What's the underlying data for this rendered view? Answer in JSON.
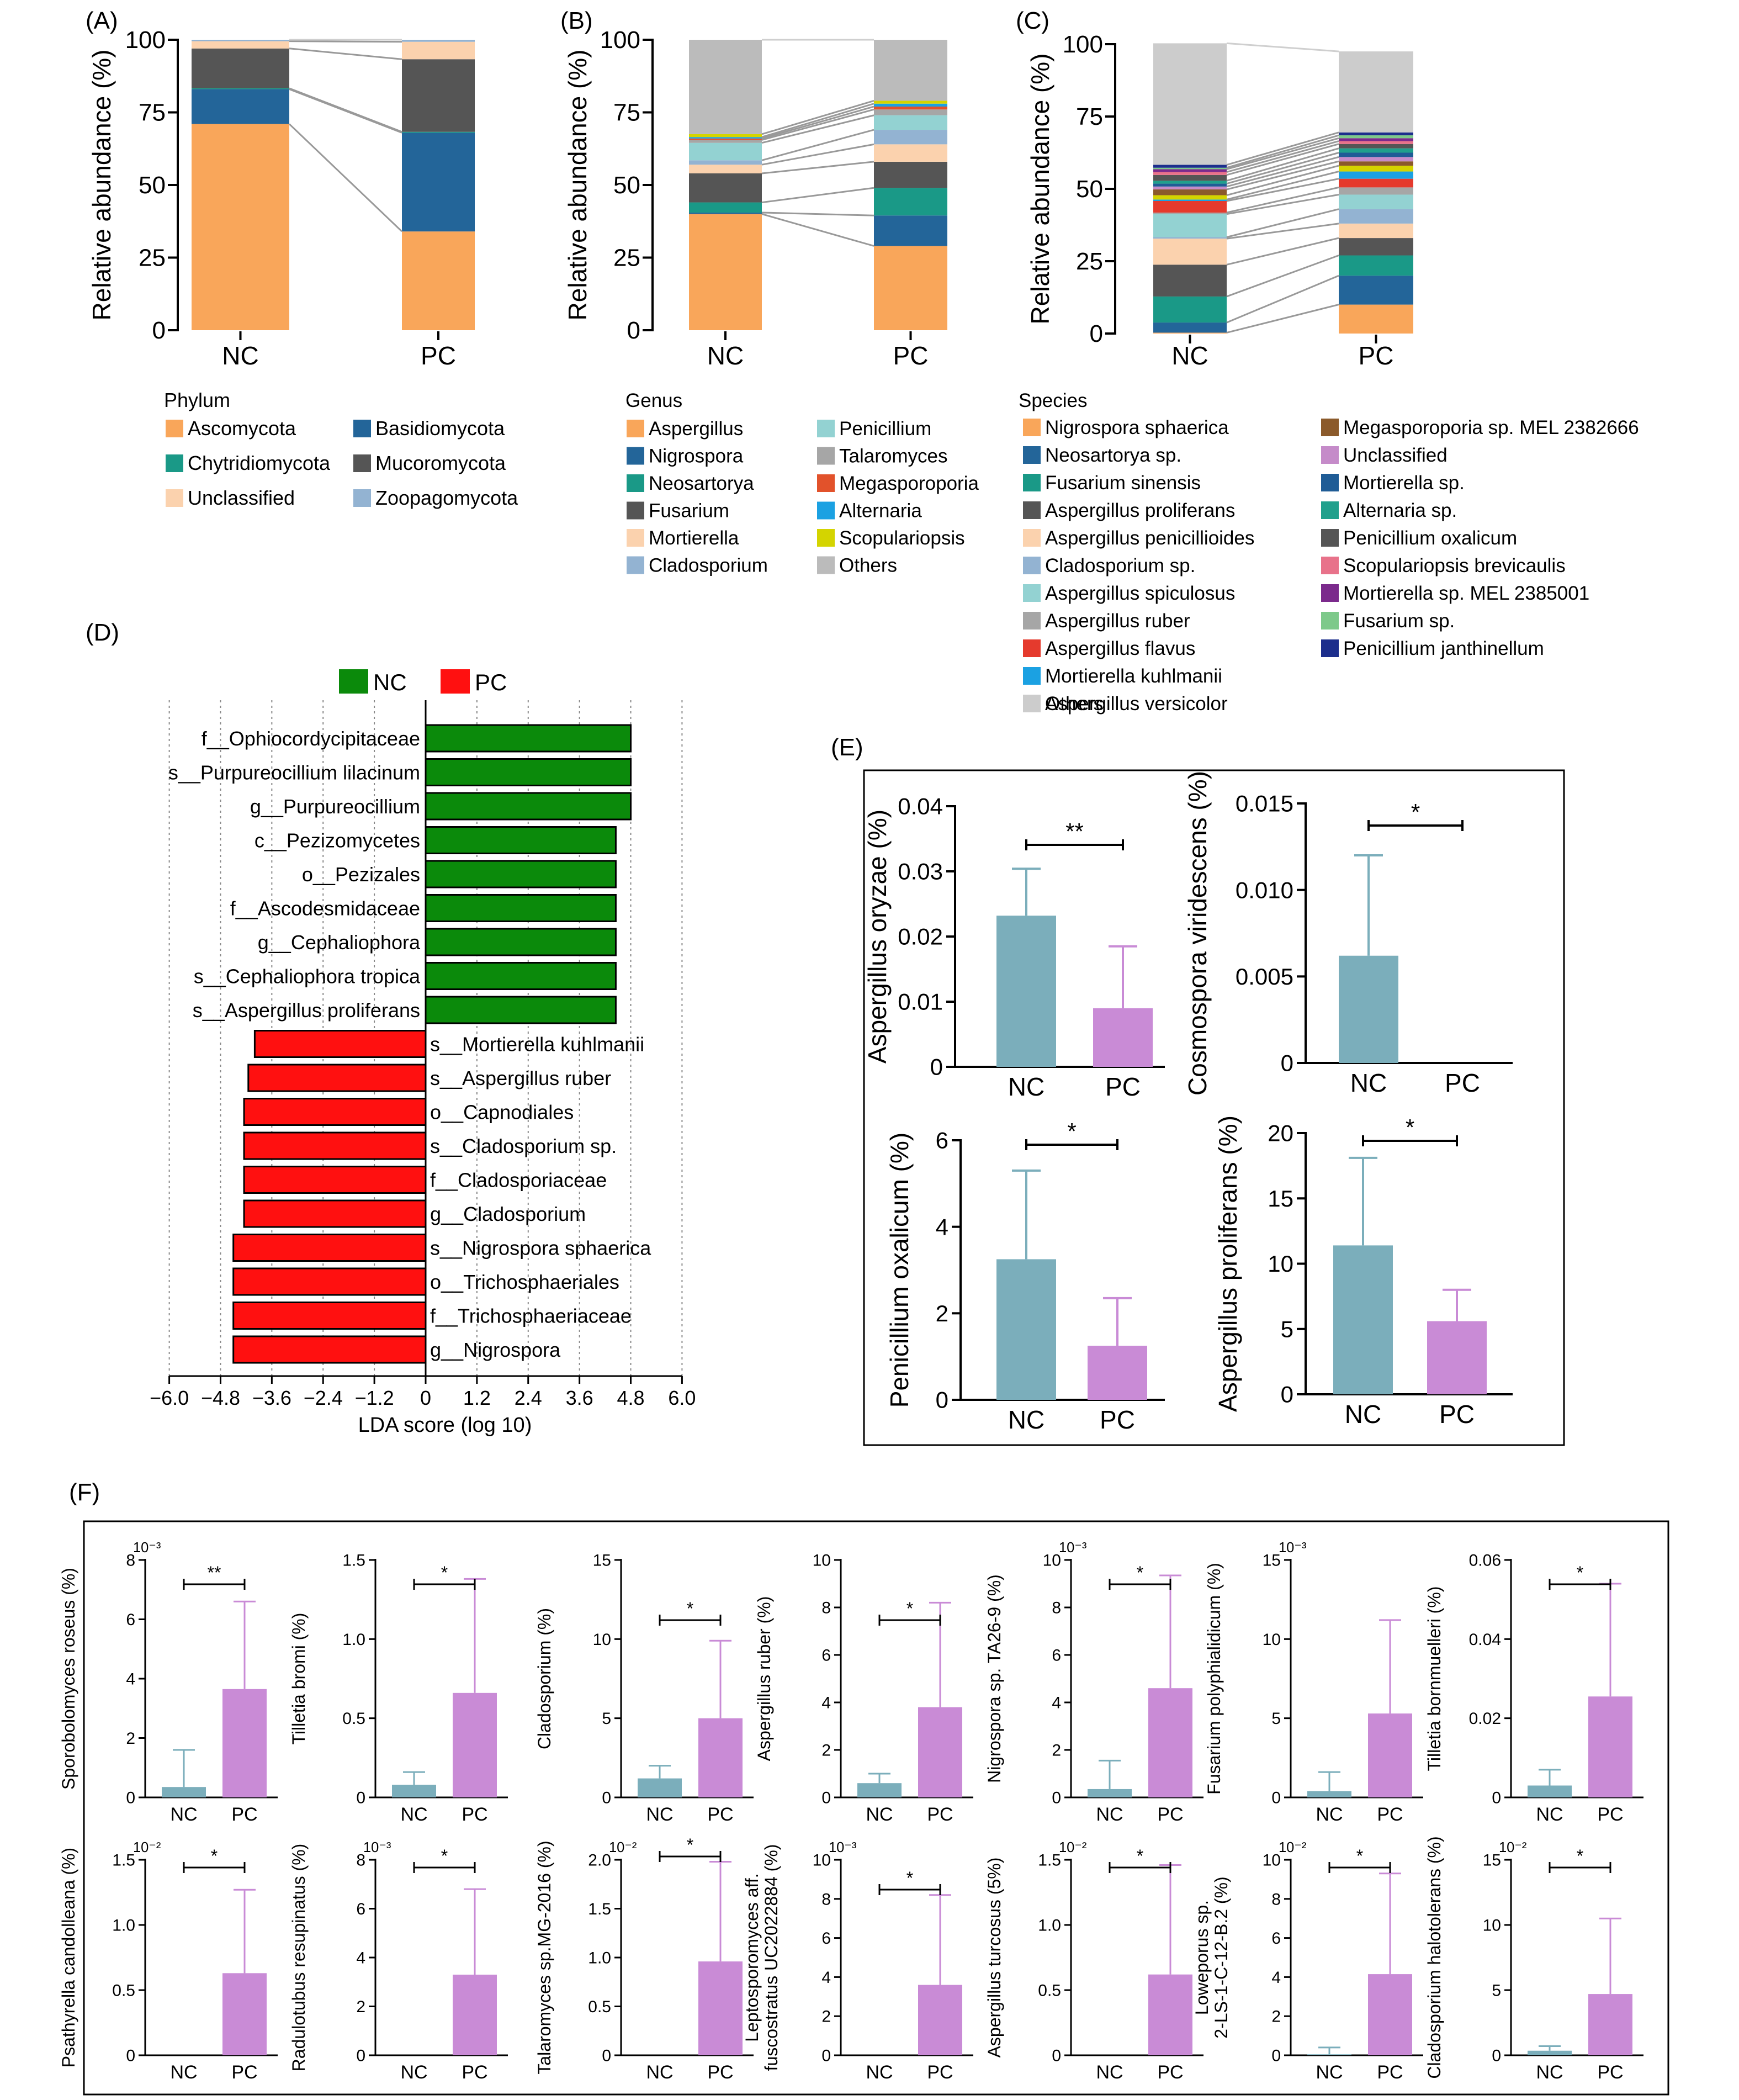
{
  "panels": {
    "A": "(A)",
    "B": "(B)",
    "C": "(C)",
    "D": "(D)",
    "E": "(E)",
    "F": "(F)"
  },
  "chart_data": [
    {
      "id": "A",
      "type": "bar",
      "stacked": true,
      "ylabel": "Relative abundance (%)",
      "ylim": [
        0,
        100
      ],
      "yticks": [
        0,
        25,
        50,
        75,
        100
      ],
      "categories": [
        "NC",
        "PC"
      ],
      "legend_title": "Phylum",
      "series": [
        {
          "name": "Ascomycota",
          "color": "#F9A65A",
          "values": [
            71,
            34
          ]
        },
        {
          "name": "Basidiomycota",
          "color": "#236599",
          "values": [
            12,
            34
          ]
        },
        {
          "name": "Chytridiomycota",
          "color": "#1A9987",
          "values": [
            0.3,
            0.3
          ]
        },
        {
          "name": "Mucoromycota",
          "color": "#555555",
          "values": [
            13.7,
            25
          ]
        },
        {
          "name": "Unclassified",
          "color": "#FBD2AE",
          "values": [
            2.5,
            6
          ]
        },
        {
          "name": "Zoopagomycota",
          "color": "#93B3D2",
          "values": [
            0.5,
            0.7
          ]
        }
      ]
    },
    {
      "id": "B",
      "type": "bar",
      "stacked": true,
      "ylabel": "Relative abundance (%)",
      "ylim": [
        0,
        100
      ],
      "yticks": [
        0,
        25,
        50,
        75,
        100
      ],
      "categories": [
        "NC",
        "PC"
      ],
      "legend_title": "Genus",
      "series": [
        {
          "name": "Aspergillus",
          "color": "#F9A65A",
          "values": [
            40,
            29
          ]
        },
        {
          "name": "Nigrospora",
          "color": "#236599",
          "values": [
            0.5,
            10.5
          ]
        },
        {
          "name": "Neosartorya",
          "color": "#1A9987",
          "values": [
            3.5,
            9.5
          ]
        },
        {
          "name": "Fusarium",
          "color": "#555555",
          "values": [
            10,
            9
          ]
        },
        {
          "name": "Mortierella",
          "color": "#FBD2AE",
          "values": [
            3,
            6
          ]
        },
        {
          "name": "Cladosporium",
          "color": "#93B3D2",
          "values": [
            1.5,
            5
          ]
        },
        {
          "name": "Penicillium",
          "color": "#93D2D2",
          "values": [
            6,
            5
          ]
        },
        {
          "name": "Talaromyces",
          "color": "#A6A6A6",
          "values": [
            1,
            2
          ]
        },
        {
          "name": "Megasporoporia",
          "color": "#E2522B",
          "values": [
            0.5,
            1
          ]
        },
        {
          "name": "Alternaria",
          "color": "#1BA1E2",
          "values": [
            0.5,
            1
          ]
        },
        {
          "name": "Scopulariopsis",
          "color": "#D4D400",
          "values": [
            1,
            1
          ]
        },
        {
          "name": "Others",
          "color": "#BBBBBB",
          "values": [
            32.5,
            21
          ]
        }
      ]
    },
    {
      "id": "C",
      "type": "bar",
      "stacked": true,
      "ylabel": "Relative abundance (%)",
      "ylim": [
        0,
        100
      ],
      "yticks": [
        0,
        25,
        50,
        75,
        100
      ],
      "categories": [
        "NC",
        "PC"
      ],
      "legend_title": "Species",
      "series": [
        {
          "name": "Nigrospora sphaerica",
          "color": "#F9A65A",
          "values": [
            0.3,
            10
          ]
        },
        {
          "name": "Neosartorya sp.",
          "color": "#236599",
          "values": [
            3.5,
            10
          ]
        },
        {
          "name": "Fusarium sinensis",
          "color": "#1A9987",
          "values": [
            9,
            7
          ]
        },
        {
          "name": "Aspergillus proliferans",
          "color": "#555555",
          "values": [
            11,
            6
          ]
        },
        {
          "name": "Aspergillus penicillioides",
          "color": "#FBD2AE",
          "values": [
            9,
            5
          ]
        },
        {
          "name": "Cladosporium sp.",
          "color": "#93B3D2",
          "values": [
            0.5,
            5
          ]
        },
        {
          "name": "Aspergillus spiculosus",
          "color": "#93D2D2",
          "values": [
            8,
            5
          ]
        },
        {
          "name": "Aspergillus ruber",
          "color": "#A6A6A6",
          "values": [
            0.5,
            2.5
          ]
        },
        {
          "name": "Aspergillus flavus",
          "color": "#E53A2D",
          "values": [
            4,
            3
          ]
        },
        {
          "name": "Mortierella kuhlmanii",
          "color": "#1BA1E2",
          "values": [
            0.5,
            2.5
          ]
        },
        {
          "name": "Aspergillus versicolor",
          "color": "#D4D400",
          "values": [
            1.5,
            2
          ]
        },
        {
          "name": "Megasporoporia sp. MEL 2382666",
          "color": "#8B5A2B",
          "values": [
            2,
            1.5
          ]
        },
        {
          "name": "Unclassified",
          "color": "#C58BC9",
          "values": [
            1,
            1.5
          ]
        },
        {
          "name": "Mortierella sp.",
          "color": "#1F5C96",
          "values": [
            1,
            1.5
          ]
        },
        {
          "name": "Alternaria sp.",
          "color": "#20A08C",
          "values": [
            1,
            1.5
          ]
        },
        {
          "name": "Penicillium oxalicum",
          "color": "#555555",
          "values": [
            2,
            1.5
          ]
        },
        {
          "name": "Scopulariopsis brevicaulis",
          "color": "#E8728A",
          "values": [
            1,
            1
          ]
        },
        {
          "name": "Mortierella sp. MEL 2385001",
          "color": "#7B2A8C",
          "values": [
            1,
            1
          ]
        },
        {
          "name": "Fusarium sp.",
          "color": "#7DC98A",
          "values": [
            0.5,
            1
          ]
        },
        {
          "name": "Penicillium janthinellum",
          "color": "#1C2E8C",
          "values": [
            1,
            1
          ]
        },
        {
          "name": "Others",
          "color": "#CCCCCC",
          "values": [
            42,
            28
          ]
        }
      ]
    },
    {
      "id": "D",
      "type": "bar",
      "orientation": "horizontal",
      "xlabel": "LDA score (log 10)",
      "xlim": [
        -6,
        6
      ],
      "xticks": [
        "−6.0",
        "−4.8",
        "−3.6",
        "−2.4",
        "−1.2",
        "0",
        "1.2",
        "2.4",
        "3.6",
        "4.8",
        "6.0"
      ],
      "xtick_values": [
        -6,
        -4.8,
        -3.6,
        -2.4,
        -1.2,
        0,
        1.2,
        2.4,
        3.6,
        4.8,
        6
      ],
      "legend": [
        {
          "name": "NC",
          "color": "#0B8A0B"
        },
        {
          "name": "PC",
          "color": "#FF1010"
        }
      ],
      "categories": [
        "f__Ophiocordycipitaceae",
        "s__Purpureocillium lilacinum",
        "g__Purpureocillium",
        "c__Pezizomycetes",
        "o__Pezizales",
        "f__Ascodesmidaceae",
        "g__Cephaliophora",
        "s__Cephaliophora tropica",
        "s__Aspergillus proliferans",
        "s__Mortierella kuhlmanii",
        "s__Aspergillus ruber",
        "o__Capnodiales",
        "s__Cladosporium sp.",
        "f__Cladosporiaceae",
        "g__Cladosporium",
        "s__Nigrospora sphaerica",
        "o__Trichosphaeriales",
        "f__Trichosphaeriaceae",
        "g__Nigrospora"
      ],
      "values": [
        4.8,
        4.8,
        4.8,
        4.45,
        4.45,
        4.45,
        4.45,
        4.45,
        4.45,
        -4.0,
        -4.15,
        -4.25,
        -4.25,
        -4.25,
        -4.25,
        -4.5,
        -4.5,
        -4.5,
        -4.5
      ]
    },
    {
      "id": "E",
      "type": "bar",
      "subplots": [
        {
          "ylabel": "Aspergillus oryzae (%)",
          "yticks": [
            "0",
            "0.01",
            "0.02",
            "0.03",
            "0.04"
          ],
          "ymax": 0.04,
          "values": [
            0.0232,
            0.009
          ],
          "errors": [
            0.0072,
            0.0095
          ],
          "sig": "**"
        },
        {
          "ylabel": "Cosmospora viridescens (%)",
          "yticks": [
            "0",
            "0.005",
            "0.010",
            "0.015"
          ],
          "ymax": 0.015,
          "values": [
            0.0062,
            0
          ],
          "errors": [
            0.0058,
            0
          ],
          "sig": "*"
        },
        {
          "ylabel": "Penicillium oxalicum (%)",
          "yticks": [
            "0",
            "2",
            "4",
            "6"
          ],
          "ymax": 6,
          "values": [
            3.25,
            1.25
          ],
          "errors": [
            2.05,
            1.1
          ],
          "sig": "*"
        },
        {
          "ylabel": "Aspergillus proliferans (%)",
          "yticks": [
            "0",
            "5",
            "10",
            "15",
            "20"
          ],
          "ymax": 20,
          "values": [
            11.4,
            5.6
          ],
          "errors": [
            6.7,
            2.4
          ],
          "sig": "*"
        }
      ],
      "categories": [
        "NC",
        "PC"
      ],
      "colors": [
        "#7BAEBB",
        "#C98BD6"
      ]
    },
    {
      "id": "F",
      "type": "bar",
      "categories": [
        "NC",
        "PC"
      ],
      "colors": [
        "#7BAEBB",
        "#C98BD6"
      ],
      "subplots": [
        {
          "ylabel": "Sporobolomyces roseus (%)",
          "exp": "10⁻³",
          "yticks": [
            "0",
            "2",
            "4",
            "6",
            "8"
          ],
          "ymax": 8,
          "values": [
            0.35,
            3.65
          ],
          "errors": [
            1.25,
            2.95
          ],
          "sig": "**"
        },
        {
          "ylabel": "Tilletia bromi (%)",
          "exp": "",
          "yticks": [
            "0",
            "0.5",
            "1.0",
            "1.5"
          ],
          "ymax": 1.5,
          "values": [
            0.08,
            0.66
          ],
          "errors": [
            0.08,
            0.72
          ],
          "sig": "*"
        },
        {
          "ylabel": "Cladosporium (%)",
          "exp": "",
          "yticks": [
            "0",
            "5",
            "10",
            "15"
          ],
          "ymax": 15,
          "values": [
            1.2,
            5
          ],
          "errors": [
            0.8,
            4.9
          ],
          "sig": "*"
        },
        {
          "ylabel": "Aspergillus ruber (%)",
          "exp": "",
          "yticks": [
            "0",
            "2",
            "4",
            "6",
            "8",
            "10"
          ],
          "ymax": 10,
          "values": [
            0.6,
            3.8
          ],
          "errors": [
            0.4,
            4.4
          ],
          "sig": "*"
        },
        {
          "ylabel": "Nigrospora sp. TA26-9 (%)",
          "exp": "10⁻³",
          "yticks": [
            "0",
            "2",
            "4",
            "6",
            "8",
            "10"
          ],
          "ymax": 10,
          "values": [
            0.35,
            4.6
          ],
          "errors": [
            1.2,
            4.75
          ],
          "sig": "*"
        },
        {
          "ylabel": "Fusarium polyphialidicum (%)",
          "exp": "10⁻³",
          "yticks": [
            "0",
            "5",
            "10",
            "15"
          ],
          "ymax": 15,
          "values": [
            0.4,
            5.3
          ],
          "errors": [
            1.2,
            5.9
          ],
          "sig": ""
        },
        {
          "ylabel": "Tilletia bornmuelleri (%)",
          "exp": "",
          "yticks": [
            "0",
            "0.02",
            "0.04",
            "0.06"
          ],
          "ymax": 0.06,
          "values": [
            0.003,
            0.0255
          ],
          "errors": [
            0.004,
            0.0285
          ],
          "sig": "*"
        },
        {
          "ylabel": "Psathyrella candolleana (%)",
          "exp": "10⁻²",
          "yticks": [
            "0",
            "0.5",
            "1.0",
            "1.5"
          ],
          "ymax": 1.5,
          "values": [
            0,
            0.63
          ],
          "errors": [
            0,
            0.64
          ],
          "sig": "*"
        },
        {
          "ylabel": "Radulotubus resupinatus (%)",
          "exp": "10⁻³",
          "yticks": [
            "0",
            "2",
            "4",
            "6",
            "8"
          ],
          "ymax": 8,
          "values": [
            0,
            3.3
          ],
          "errors": [
            0,
            3.5
          ],
          "sig": "*"
        },
        {
          "ylabel": "Talaromyces sp.MG-2016 (%)",
          "exp": "10⁻²",
          "yticks": [
            "0",
            "0.5",
            "1.0",
            "1.5",
            "2.0"
          ],
          "ymax": 2,
          "values": [
            0,
            0.96
          ],
          "errors": [
            0,
            1.02
          ],
          "sig": "*"
        },
        {
          "ylabel": "Leptosporomyces aff. fuscostratus UC2022884 (%)",
          "exp": "10⁻³",
          "yticks": [
            "0",
            "2",
            "4",
            "6",
            "8",
            "10"
          ],
          "ymax": 10,
          "values": [
            0,
            3.6
          ],
          "errors": [
            0,
            4.6
          ],
          "sig": "*"
        },
        {
          "ylabel": "Aspergillus turcosus (5%)",
          "exp": "10⁻²",
          "yticks": [
            "0",
            "0.5",
            "1.0",
            "1.5"
          ],
          "ymax": 1.5,
          "values": [
            0,
            0.62
          ],
          "errors": [
            0,
            0.84
          ],
          "sig": "*"
        },
        {
          "ylabel": "Loweporus sp. 2-LS-1-C-12-B.2 (%)",
          "exp": "10⁻²",
          "yticks": [
            "0",
            "2",
            "4",
            "6",
            "8",
            "10"
          ],
          "ymax": 10,
          "values": [
            0.05,
            4.15
          ],
          "errors": [
            0.35,
            5.15
          ],
          "sig": "*"
        },
        {
          "ylabel": "Cladosporium halotolerans (%)",
          "exp": "10⁻²",
          "yticks": [
            "0",
            "5",
            "10",
            "15"
          ],
          "ymax": 15,
          "values": [
            0.35,
            4.7
          ],
          "errors": [
            0.35,
            5.8
          ],
          "sig": "*"
        }
      ]
    }
  ]
}
